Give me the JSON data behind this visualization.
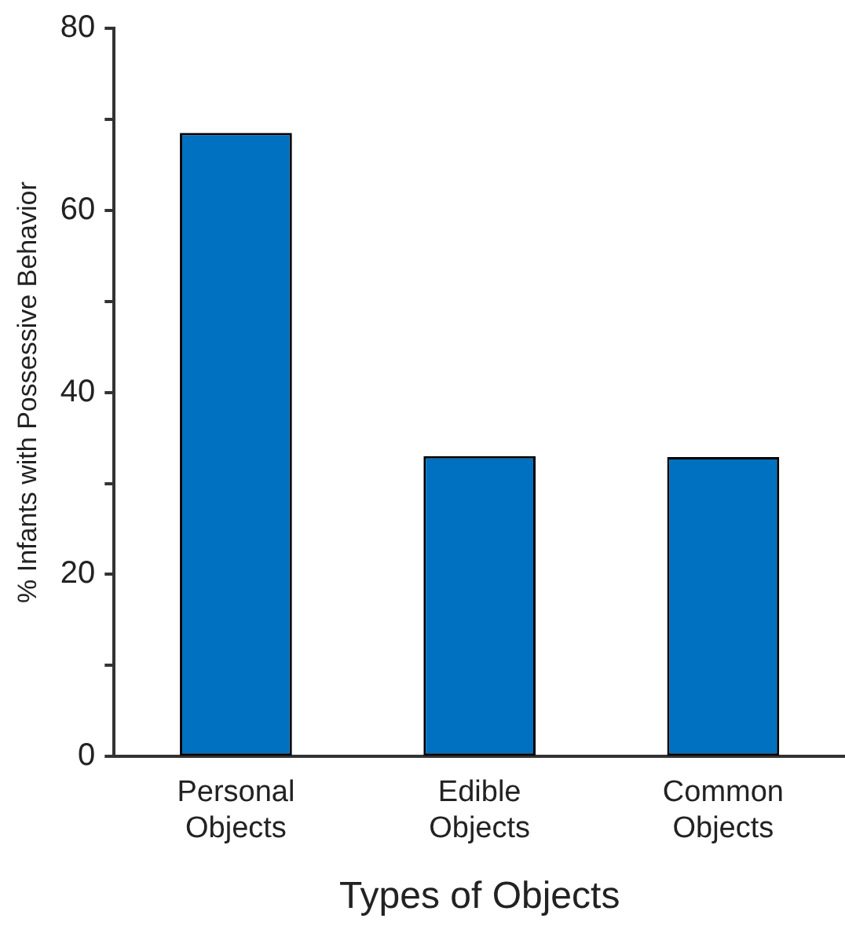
{
  "chart_data": {
    "type": "bar",
    "xlabel": "Types of Objects",
    "ylabel": "% Infants with Possessive Behavior",
    "categories": [
      "Personal Objects",
      "Edible Objects",
      "Common Objects"
    ],
    "values": [
      68.5,
      33.0,
      32.9
    ],
    "color": "#0070c0",
    "ylim": [
      0,
      80
    ],
    "yticks": [
      0,
      {
        "value": 10,
        "label": null
      },
      20,
      {
        "value": 30,
        "label": null
      },
      40,
      {
        "value": 50,
        "label": null
      },
      60,
      {
        "value": 70,
        "label": null
      },
      80
    ],
    "grid": false,
    "legend": false
  }
}
